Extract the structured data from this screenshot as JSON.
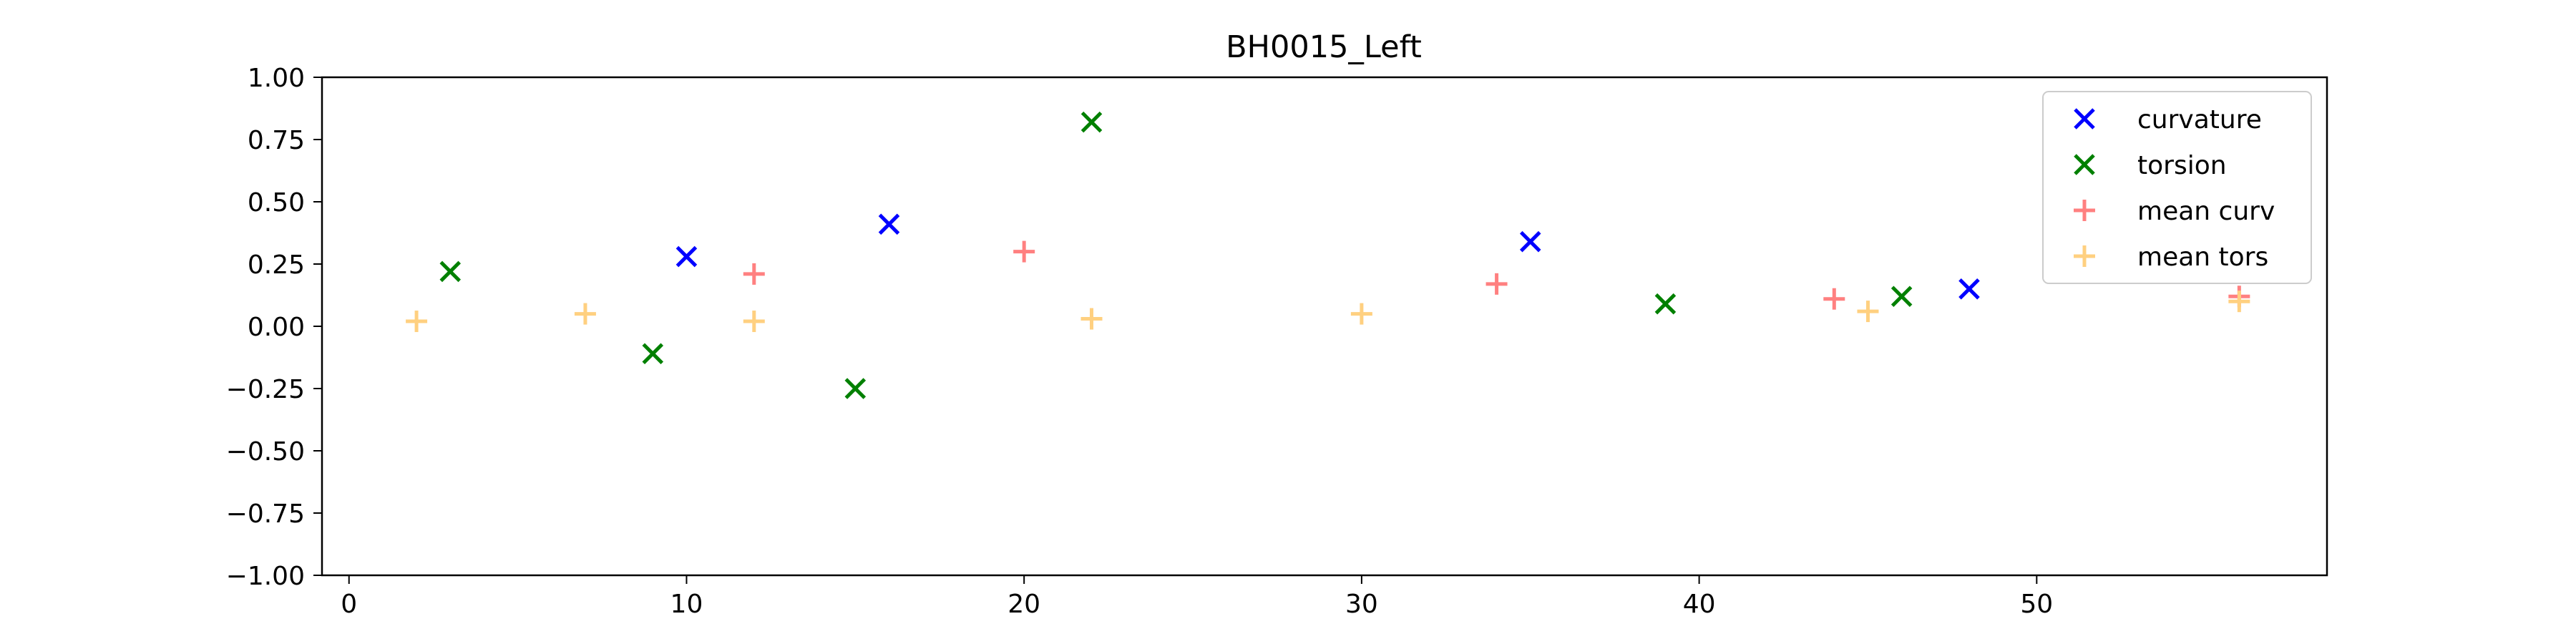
{
  "chart_data": {
    "type": "scatter",
    "title": "BH0015_Left",
    "xlabel": "",
    "ylabel": "",
    "xlim": [
      -0.8,
      58.6
    ],
    "ylim": [
      -1.0,
      1.0
    ],
    "xticks": [
      0,
      10,
      20,
      30,
      40,
      50
    ],
    "yticks": [
      1.0,
      0.75,
      0.5,
      0.25,
      0.0,
      -0.25,
      -0.5,
      -0.75,
      -1.0
    ],
    "xtick_labels": [
      "0",
      "10",
      "20",
      "30",
      "40",
      "50"
    ],
    "ytick_labels": [
      "1.00",
      "0.75",
      "0.50",
      "0.25",
      "0.00",
      "−0.25",
      "−0.50",
      "−0.75",
      "−1.00"
    ],
    "grid": false,
    "legend_position": "top-right",
    "series": [
      {
        "name": "curvature",
        "marker": "x",
        "color": "#0000ff",
        "x": [
          10,
          16,
          35,
          48
        ],
        "y": [
          0.28,
          0.41,
          0.34,
          0.15
        ]
      },
      {
        "name": "torsion",
        "marker": "x",
        "color": "#008000",
        "x": [
          3,
          9,
          15,
          22,
          39,
          46
        ],
        "y": [
          0.22,
          -0.11,
          -0.25,
          0.82,
          0.09,
          0.12
        ]
      },
      {
        "name": "mean curv",
        "marker": "+",
        "color": "#ff8080",
        "x": [
          12,
          20,
          34,
          44,
          56
        ],
        "y": [
          0.21,
          0.3,
          0.17,
          0.11,
          0.12
        ]
      },
      {
        "name": "mean tors",
        "marker": "+",
        "color": "#ffd080",
        "x": [
          2,
          7,
          12,
          22,
          30,
          45,
          56
        ],
        "y": [
          0.02,
          0.05,
          0.02,
          0.03,
          0.05,
          0.06,
          0.1
        ]
      }
    ]
  }
}
